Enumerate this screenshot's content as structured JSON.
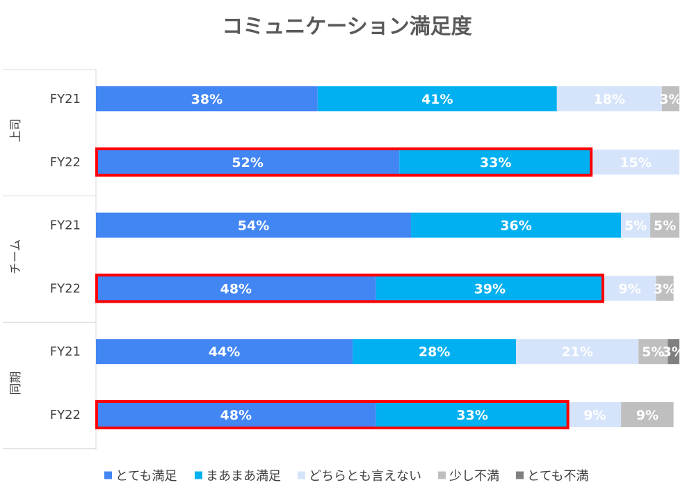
{
  "chart_data": {
    "type": "bar",
    "orientation": "horizontal",
    "stacked": true,
    "normalized": true,
    "title": "コミュニケーション満足度",
    "xlim": [
      0,
      100
    ],
    "groups": [
      {
        "label": "上司",
        "rows": [
          {
            "label": "FY21",
            "values": [
              38,
              41,
              18,
              3,
              0
            ],
            "labels": [
              "38%",
              "41%",
              "18%",
              "3%",
              ""
            ],
            "highlighted": false
          },
          {
            "label": "FY22",
            "values": [
              52,
              33,
              15,
              0,
              0
            ],
            "labels": [
              "52%",
              "33%",
              "15%",
              "",
              ""
            ],
            "highlighted": true
          }
        ]
      },
      {
        "label": "チーム",
        "rows": [
          {
            "label": "FY21",
            "values": [
              54,
              36,
              5,
              5,
              0
            ],
            "labels": [
              "54%",
              "36%",
              "5%",
              "5%",
              ""
            ],
            "highlighted": false
          },
          {
            "label": "FY22",
            "values": [
              48,
              39,
              9,
              3,
              0
            ],
            "labels": [
              "48%",
              "39%",
              "9%",
              "3%",
              ""
            ],
            "highlighted": true
          }
        ]
      },
      {
        "label": "同期",
        "rows": [
          {
            "label": "FY21",
            "values": [
              44,
              28,
              21,
              5,
              3
            ],
            "labels": [
              "44%",
              "28%",
              "21%",
              "5%",
              "3%"
            ],
            "highlighted": false
          },
          {
            "label": "FY22",
            "values": [
              48,
              33,
              9,
              9,
              0
            ],
            "labels": [
              "48%",
              "33%",
              "9%",
              "9%",
              ""
            ],
            "highlighted": true
          }
        ]
      }
    ],
    "series": [
      {
        "name": "とても満足",
        "color": "#4286f4"
      },
      {
        "name": "まあまあ満足",
        "color": "#00b0f0"
      },
      {
        "name": "どちらとも言えない",
        "color": "#d6e4fb"
      },
      {
        "name": "少し不満",
        "color": "#bfbfbf"
      },
      {
        "name": "とても不満",
        "color": "#808080"
      }
    ],
    "highlight_color": "#ff0000",
    "legend_position": "bottom"
  }
}
